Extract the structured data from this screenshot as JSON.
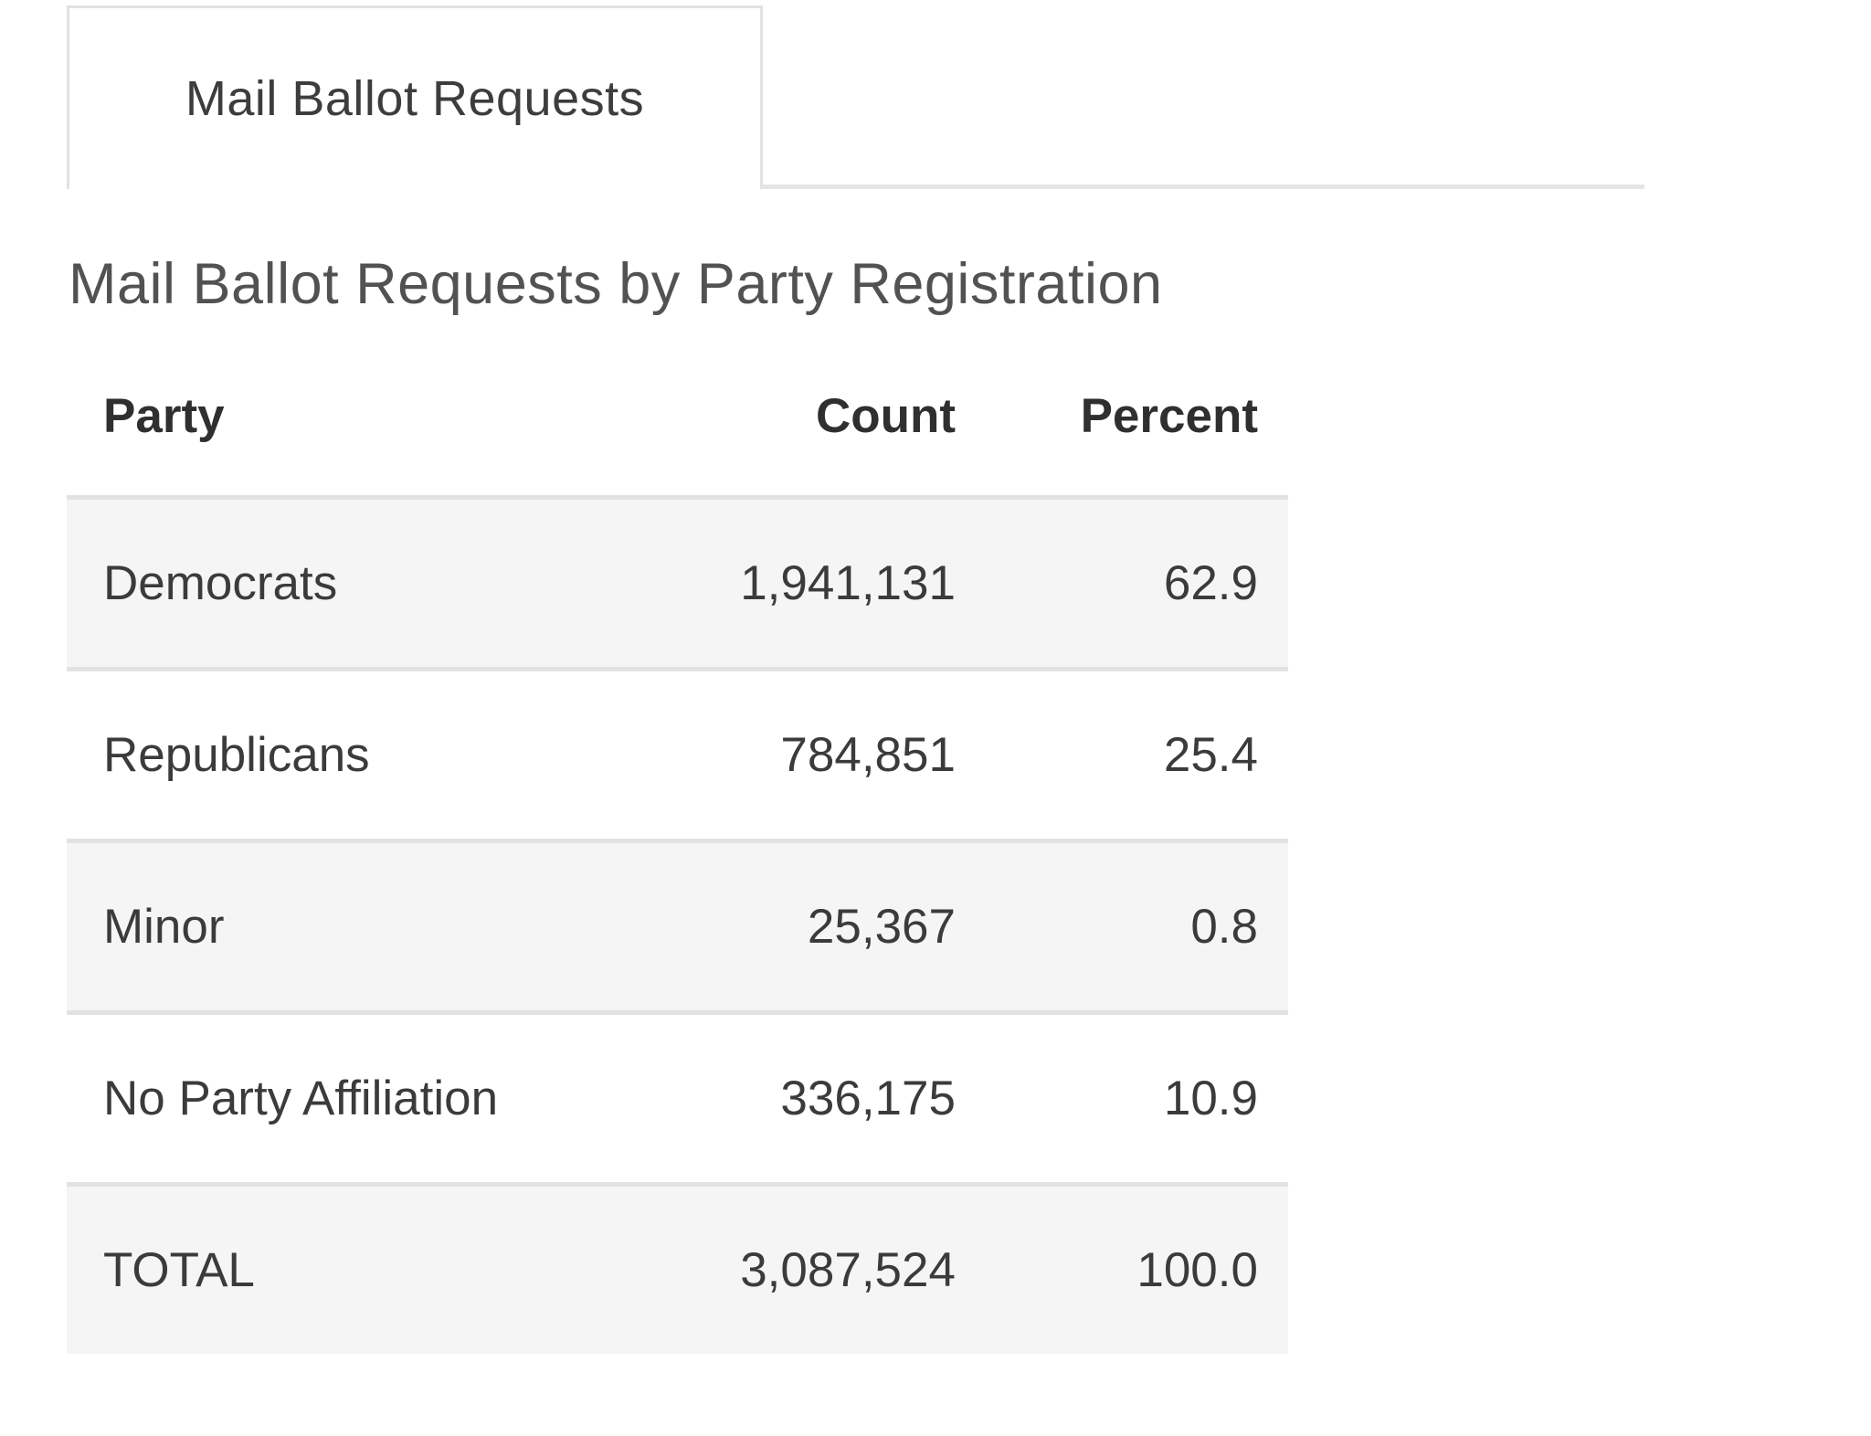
{
  "tabs": [
    {
      "label": "Mail Ballot Requests",
      "active": true
    }
  ],
  "page": {
    "title": "Mail Ballot Requests by Party Registration"
  },
  "table": {
    "columns": {
      "party": "Party",
      "count": "Count",
      "percent": "Percent"
    },
    "rows": [
      {
        "party": "Democrats",
        "count": "1,941,131",
        "percent": "62.9"
      },
      {
        "party": "Republicans",
        "count": "784,851",
        "percent": "25.4"
      },
      {
        "party": "Minor",
        "count": "25,367",
        "percent": "0.8"
      },
      {
        "party": "No Party Affiliation",
        "count": "336,175",
        "percent": "10.9"
      },
      {
        "party": "TOTAL",
        "count": "3,087,524",
        "percent": "100.0"
      }
    ]
  },
  "colors": {
    "row_stripe": "#f5f5f5",
    "row_border": "#e2e2e2",
    "tab_border": "#e2e2e2",
    "title_text": "#525252",
    "body_text": "#3b3b3b",
    "header_text": "#2f2f2f"
  }
}
